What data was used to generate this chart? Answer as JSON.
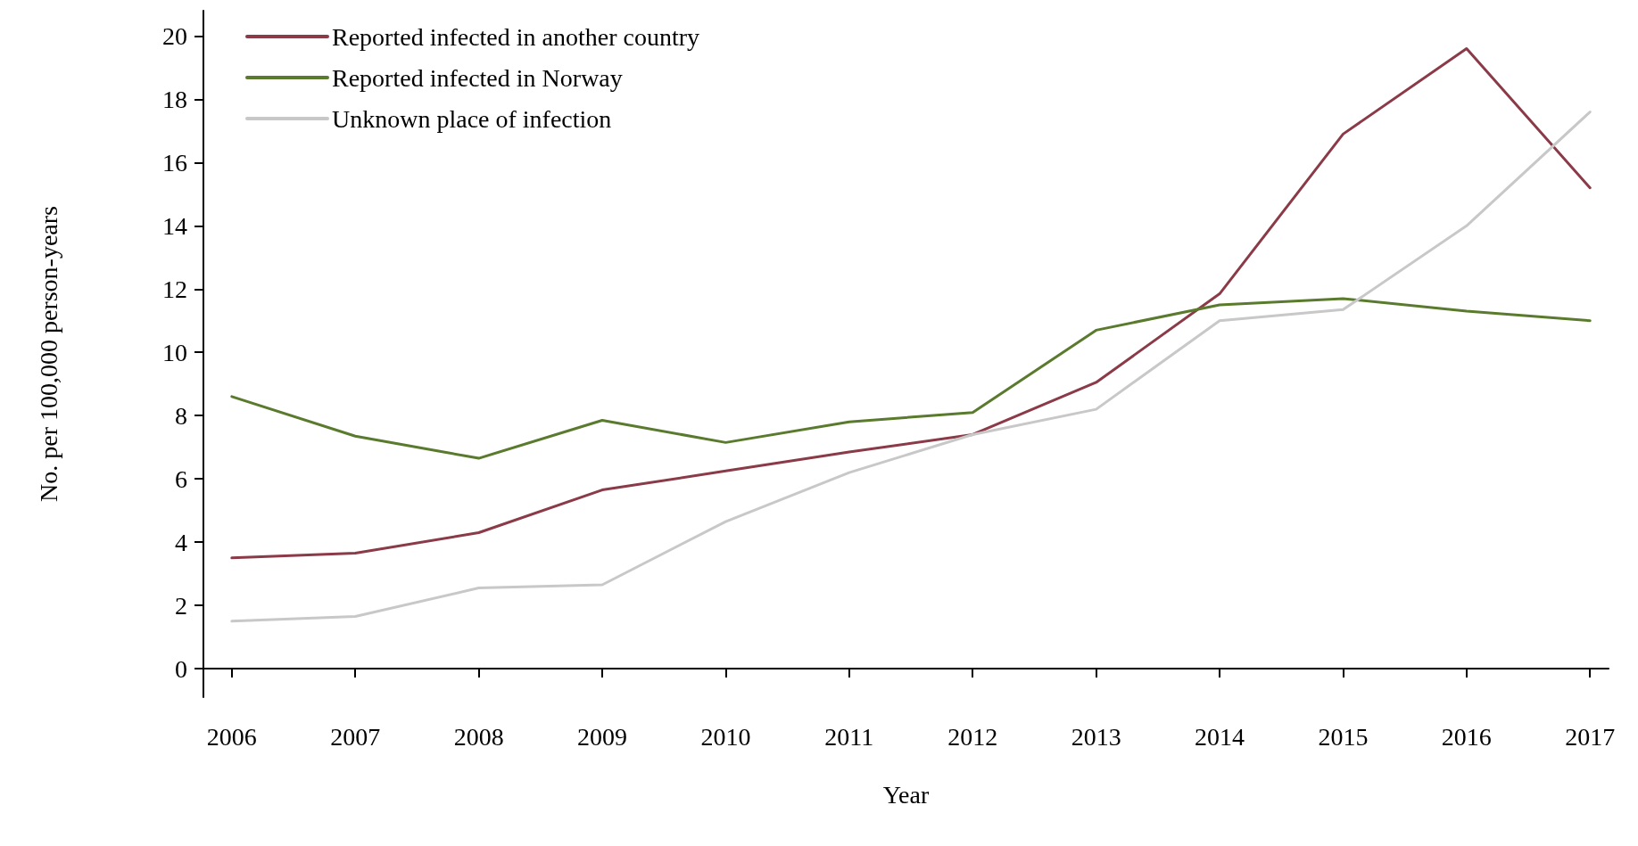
{
  "chart_data": {
    "type": "line",
    "xlabel": "Year",
    "ylabel": "No. per 100,000 person-years",
    "x": [
      2006,
      2007,
      2008,
      2009,
      2010,
      2011,
      2012,
      2013,
      2014,
      2015,
      2016,
      2017
    ],
    "series": [
      {
        "name": "Reported infected in another country",
        "color": "#8b3a48",
        "values": [
          3.5,
          3.65,
          4.3,
          5.65,
          6.25,
          6.85,
          7.4,
          9.05,
          11.85,
          16.9,
          19.6,
          15.2
        ]
      },
      {
        "name": "Reported infected in Norway",
        "color": "#5a7a2e",
        "values": [
          8.6,
          7.35,
          6.65,
          7.85,
          7.15,
          7.8,
          8.1,
          10.7,
          11.5,
          11.7,
          11.3,
          11.0
        ]
      },
      {
        "name": "Unknown place of infection",
        "color": "#c8c8c8",
        "values": [
          1.5,
          1.65,
          2.55,
          2.65,
          4.65,
          6.2,
          7.4,
          8.2,
          11.0,
          11.35,
          14.0,
          17.6
        ]
      }
    ],
    "xlim": [
      2005.77,
      2017.15
    ],
    "xticks": [
      2006,
      2007,
      2008,
      2009,
      2010,
      2011,
      2012,
      2013,
      2014,
      2015,
      2016,
      2017
    ],
    "ylim": [
      -0.9,
      20.8
    ],
    "yticks": [
      0,
      2,
      4,
      6,
      8,
      10,
      12,
      14,
      16,
      18,
      20
    ],
    "grid": false,
    "legend": "top left",
    "marker": "none",
    "line_style": "solid"
  }
}
